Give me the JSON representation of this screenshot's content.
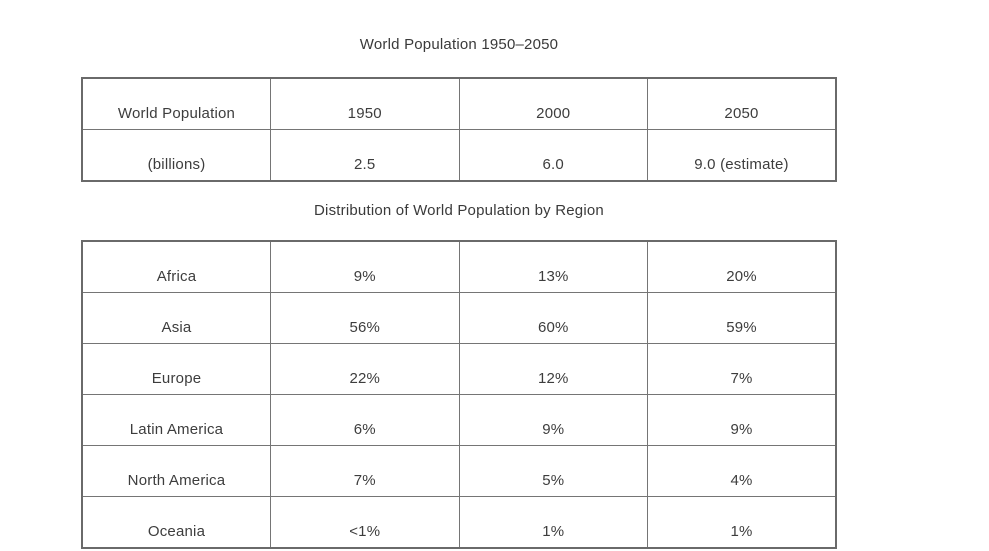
{
  "titles": {
    "population": "World Population 1950–2050",
    "distribution": "Distribution of World Population by Region"
  },
  "population_table": {
    "rows": [
      [
        "World Population",
        "1950",
        "2000",
        "2050"
      ],
      [
        "(billions)",
        "2.5",
        "6.0",
        "9.0 (estimate)"
      ]
    ]
  },
  "distribution_table": {
    "rows": [
      [
        "Africa",
        "9%",
        "13%",
        "20%"
      ],
      [
        "Asia",
        "56%",
        "60%",
        "59%"
      ],
      [
        "Europe",
        "22%",
        "12%",
        "7%"
      ],
      [
        "Latin America",
        "6%",
        "9%",
        "9%"
      ],
      [
        "North America",
        "7%",
        "5%",
        "4%"
      ],
      [
        "Oceania",
        "<1%",
        "1%",
        "1%"
      ]
    ]
  },
  "colors": {
    "background": "#ffffff",
    "border": "#6a6a6a",
    "text": "#3d3d3d"
  }
}
